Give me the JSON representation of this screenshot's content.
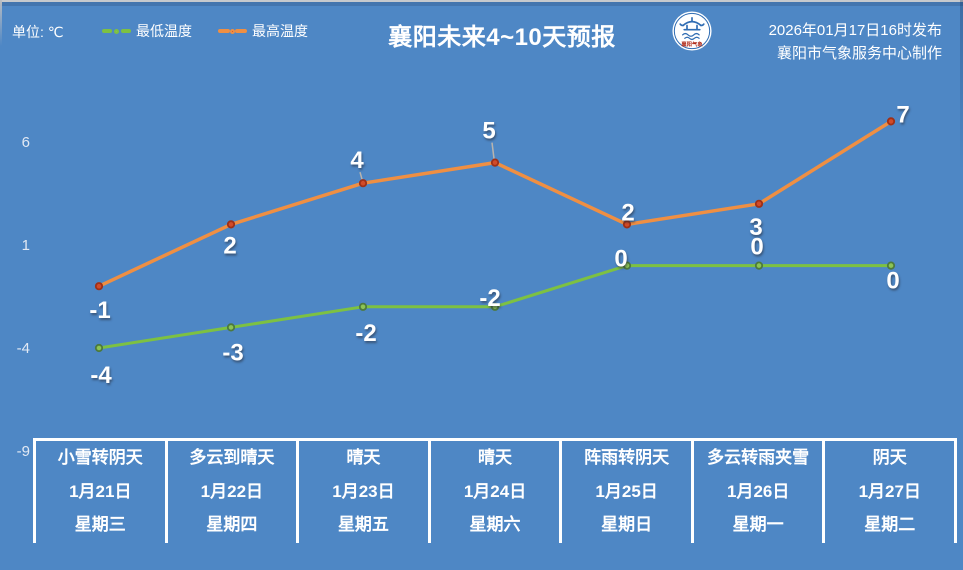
{
  "header": {
    "unit_label": "单位: ℃",
    "title": "襄阳未来4~10天预报",
    "logo_text": "襄阳气象",
    "release_line1": "2026年01月17日16时发布",
    "release_line2": "襄阳市气象服务中心制作"
  },
  "colors": {
    "background": "#4e87c5",
    "separator": "#ffffff",
    "tick_label": "#e2e9f4",
    "min_temp": "#7dc142",
    "max_temp": "#ef8f43"
  },
  "chart_data": {
    "type": "line",
    "title": "襄阳未来4~10天预报",
    "categories": [
      "1月21日",
      "1月22日",
      "1月23日",
      "1月24日",
      "1月25日",
      "1月26日",
      "1月27日"
    ],
    "series": [
      {
        "name": "最低温度",
        "color": "#7dc142",
        "marker_fill": "#8cc455",
        "marker_stroke": "#4c7a3d",
        "values": [
          -4,
          -3,
          -2,
          -2,
          0,
          0,
          0
        ]
      },
      {
        "name": "最高温度",
        "color": "#ef8f43",
        "marker_fill": "#d14b28",
        "marker_stroke": "#9e3017",
        "values": [
          -1,
          2,
          4,
          5,
          2,
          3,
          7
        ]
      }
    ],
    "ylabel": "℃",
    "yticks": [
      6,
      1,
      -4,
      -9
    ],
    "ylim": [
      -9,
      9
    ],
    "grid": false,
    "legend_position": "top-left"
  },
  "forecast_table": {
    "columns": [
      {
        "weather": "小雪转阴天",
        "date": "1月21日",
        "week": "星期三"
      },
      {
        "weather": "多云到晴天",
        "date": "1月22日",
        "week": "星期四"
      },
      {
        "weather": "晴天",
        "date": "1月23日",
        "week": "星期五"
      },
      {
        "weather": "晴天",
        "date": "1月24日",
        "week": "星期六"
      },
      {
        "weather": "阵雨转阴天",
        "date": "1月25日",
        "week": "星期日"
      },
      {
        "weather": "多云转雨夹雪",
        "date": "1月26日",
        "week": "星期一"
      },
      {
        "weather": "阴天",
        "date": "1月27日",
        "week": "星期二"
      }
    ]
  }
}
